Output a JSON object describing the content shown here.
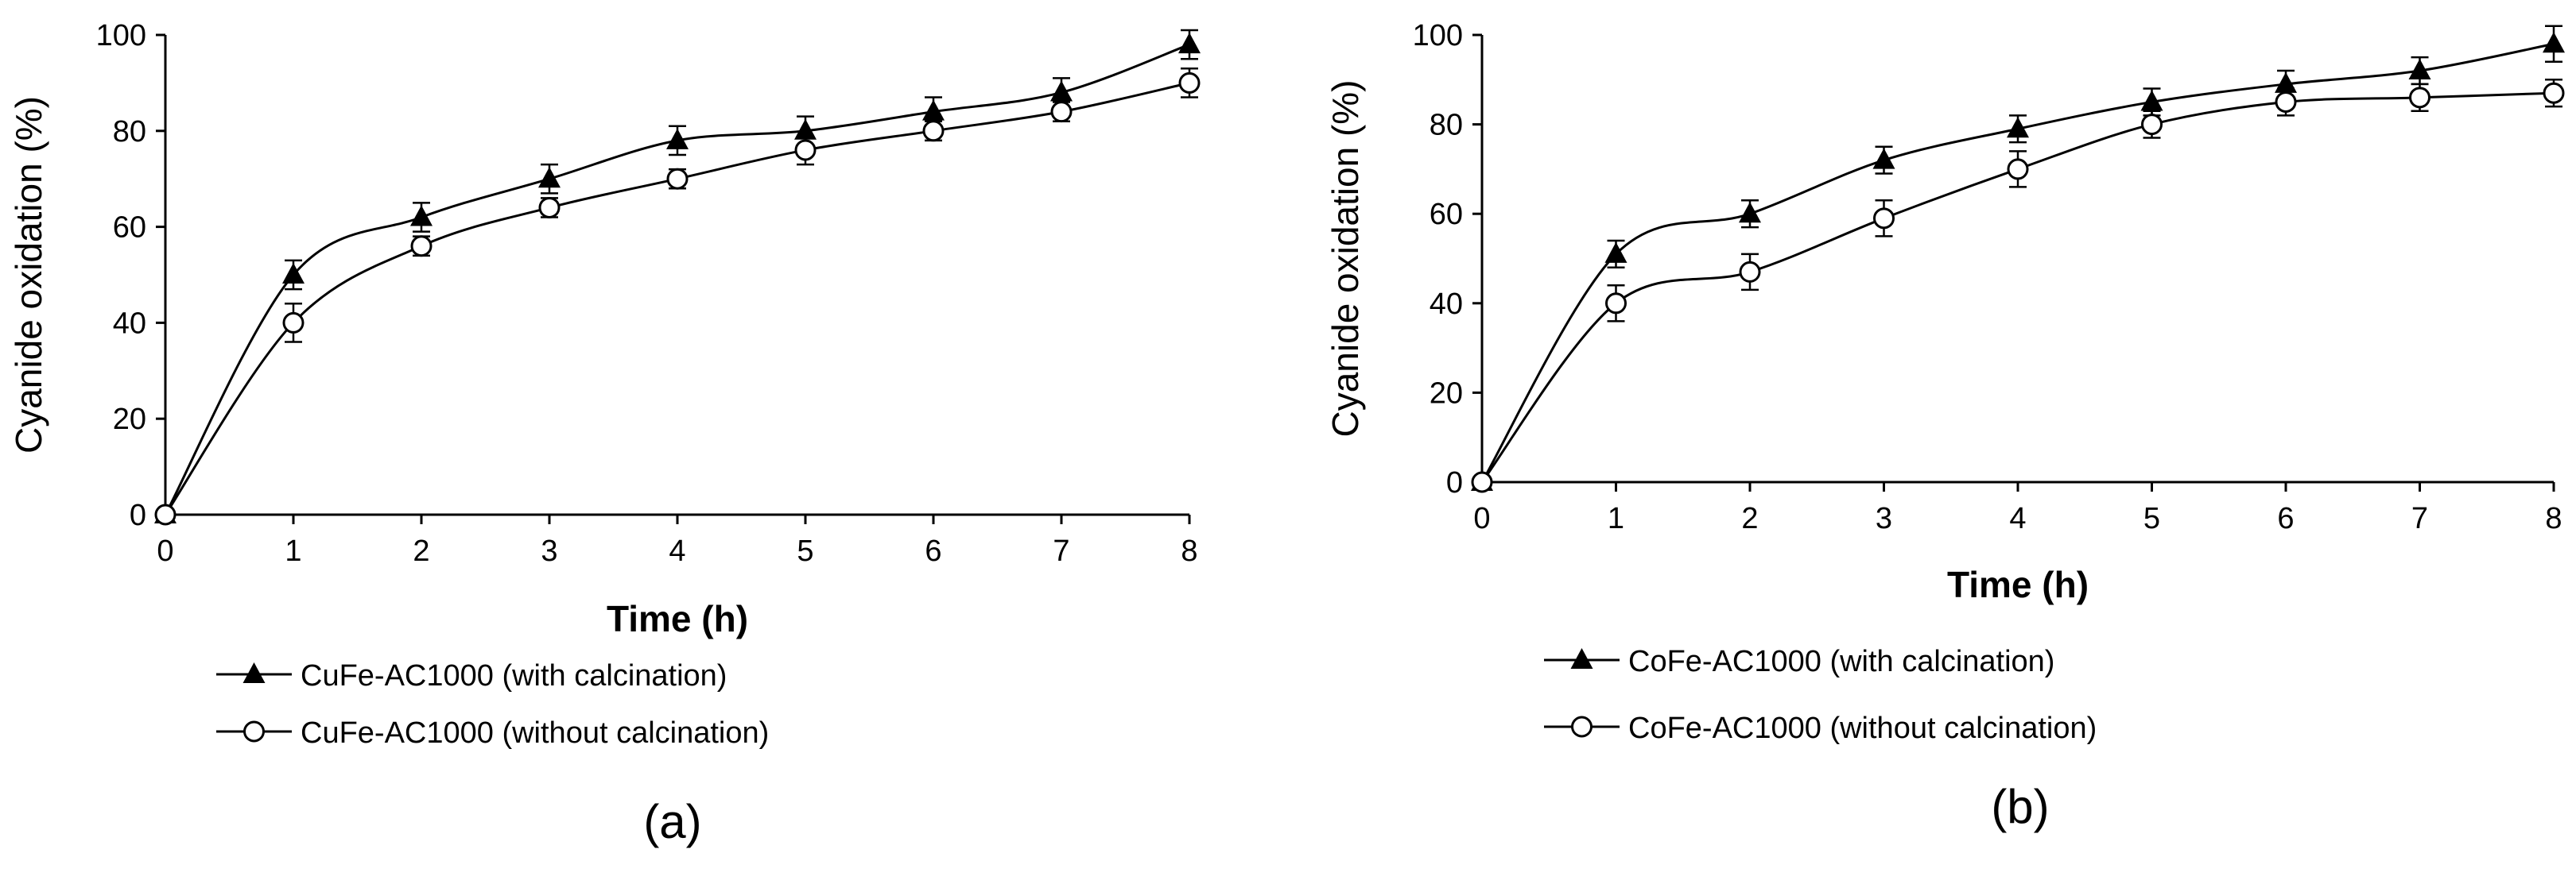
{
  "colors": {
    "line": "#000000",
    "background": "#ffffff",
    "open_marker_fill": "#ffffff"
  },
  "chart_data": [
    {
      "type": "line",
      "panel_label": "(a)",
      "xlabel": "Time  (h)",
      "ylabel": "Cyanide oxidation  (%)",
      "xlim": [
        0,
        8
      ],
      "ylim": [
        0,
        100
      ],
      "xticks": [
        0,
        1,
        2,
        3,
        4,
        5,
        6,
        7,
        8
      ],
      "yticks": [
        0,
        20,
        40,
        60,
        80,
        100
      ],
      "grid": false,
      "legend_position": "below plot",
      "x": [
        0,
        1,
        2,
        3,
        4,
        5,
        6,
        7,
        8
      ],
      "series": [
        {
          "name": "CuFe-AC1000 (with calcination)",
          "marker": "filled-triangle",
          "values": [
            0,
            50,
            62,
            70,
            78,
            80,
            84,
            88,
            98
          ],
          "errors": [
            0,
            3,
            3,
            3,
            3,
            3,
            3,
            3,
            3
          ]
        },
        {
          "name": "CuFe-AC1000 (without calcination)",
          "marker": "open-circle",
          "values": [
            0,
            40,
            56,
            64,
            70,
            76,
            80,
            84,
            90
          ],
          "errors": [
            0,
            4,
            2,
            2,
            2,
            3,
            2,
            2,
            3
          ]
        }
      ]
    },
    {
      "type": "line",
      "panel_label": "(b)",
      "xlabel": "Time  (h)",
      "ylabel": "Cyanide oxidation  (%)",
      "xlim": [
        0,
        8
      ],
      "ylim": [
        0,
        100
      ],
      "xticks": [
        0,
        1,
        2,
        3,
        4,
        5,
        6,
        7,
        8
      ],
      "yticks": [
        0,
        20,
        40,
        60,
        80,
        100
      ],
      "grid": false,
      "legend_position": "below plot",
      "x": [
        0,
        1,
        2,
        3,
        4,
        5,
        6,
        7,
        8
      ],
      "series": [
        {
          "name": "CoFe-AC1000 (with calcination)",
          "marker": "filled-triangle",
          "values": [
            0,
            51,
            60,
            72,
            79,
            85,
            89,
            92,
            98
          ],
          "errors": [
            0,
            3,
            3,
            3,
            3,
            3,
            3,
            3,
            4
          ]
        },
        {
          "name": "CoFe-AC1000 (without calcination)",
          "marker": "open-circle",
          "values": [
            0,
            40,
            47,
            59,
            70,
            80,
            85,
            86,
            87
          ],
          "errors": [
            0,
            4,
            4,
            4,
            4,
            3,
            3,
            3,
            3
          ]
        }
      ]
    }
  ]
}
